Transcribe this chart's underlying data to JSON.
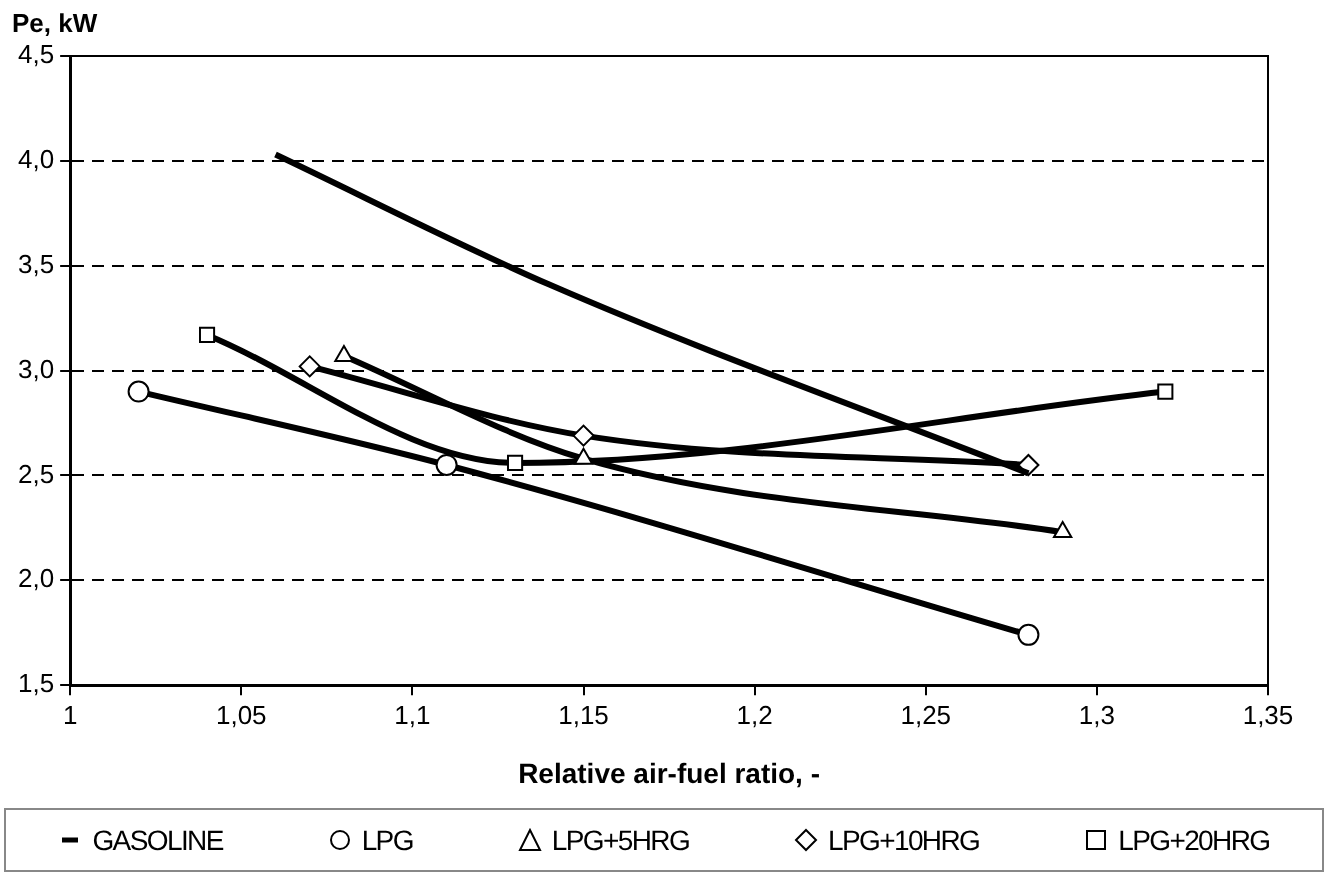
{
  "chart_data": {
    "type": "line",
    "xlabel": "Relative air-fuel ratio, -",
    "ylabel": "Pe, kW",
    "xlim": [
      1,
      1.35
    ],
    "xticks": [
      1,
      {
        "value": 1.05,
        "label": "1,05"
      },
      {
        "value": 1.1,
        "label": "1,1"
      },
      {
        "value": 1.15,
        "label": "1,15"
      },
      {
        "value": 1.2,
        "label": "1,2"
      },
      {
        "value": 1.25,
        "label": "1,25"
      },
      {
        "value": 1.3,
        "label": "1,3"
      },
      {
        "value": 1.35,
        "label": "1,35"
      }
    ],
    "ylim": [
      1.5,
      4.5
    ],
    "yticks": [
      {
        "value": 1.5,
        "label": "1,5"
      },
      {
        "value": 2,
        "label": "2,0"
      },
      {
        "value": 2.5,
        "label": "2,5"
      },
      {
        "value": 3,
        "label": "3,0"
      },
      {
        "value": 3.5,
        "label": "3,5"
      },
      {
        "value": 4,
        "label": "4,0"
      },
      {
        "value": 4.5,
        "label": "4,5"
      }
    ],
    "grid": "y",
    "legend": "bottom",
    "line_style": "solid",
    "series": [
      {
        "name": "GASOLINE",
        "color": "#000000",
        "marker": "none",
        "x": [
          1.06,
          1.14,
          1.28
        ],
        "values": [
          4.03,
          3.41,
          2.51
        ]
      },
      {
        "name": "LPG",
        "color": "#000000",
        "marker": "circle",
        "x": [
          1.02,
          1.11,
          1.28
        ],
        "values": [
          2.9,
          2.55,
          1.74
        ]
      },
      {
        "name": "LPG+5HRG",
        "color": "#000000",
        "marker": "triangle",
        "x": [
          1.08,
          1.15,
          1.29
        ],
        "values": [
          3.07,
          2.58,
          2.23
        ]
      },
      {
        "name": "LPG+10HRG",
        "color": "#000000",
        "marker": "diamond",
        "x": [
          1.07,
          1.15,
          1.28
        ],
        "values": [
          3.02,
          2.69,
          2.55
        ]
      },
      {
        "name": "LPG+20HRG",
        "color": "#000000",
        "marker": "square",
        "x": [
          1.04,
          1.13,
          1.32
        ],
        "values": [
          3.17,
          2.56,
          2.9
        ]
      }
    ]
  }
}
